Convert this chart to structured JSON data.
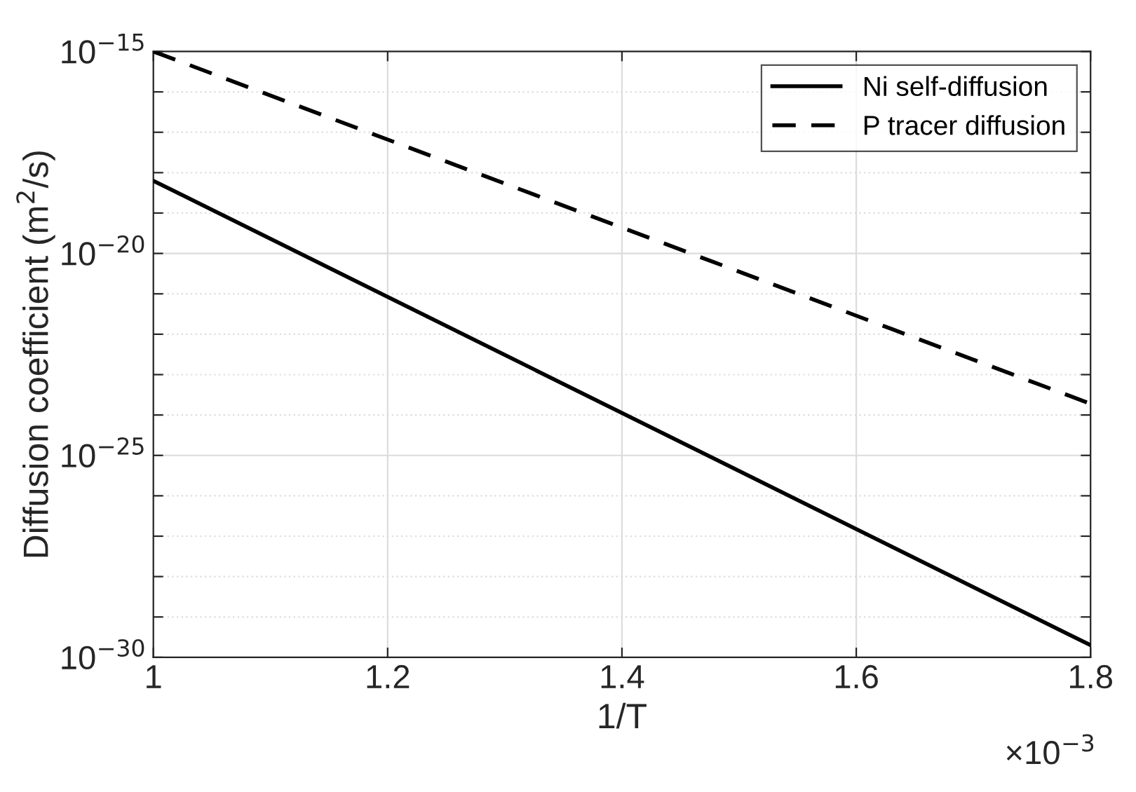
{
  "chart_data": {
    "type": "line",
    "xlabel": "1/T",
    "ylabel": "Diffusion coefficient (m$^{2}$/s)",
    "log": "y",
    "x": [
      1,
      1.8
    ],
    "series": [
      {
        "name": "Ni self-diffusion",
        "color": "#000000",
        "values": [
          6.3e-19,
          2e-30
        ],
        "line_style": "solid"
      },
      {
        "name": "P tracer diffusion",
        "color": "#000000",
        "values": [
          1e-15,
          1.9e-24
        ],
        "line_style": "dashed"
      }
    ],
    "xlim": [
      1,
      1.8
    ],
    "xticks": [
      1,
      1.2,
      1.4,
      1.6,
      1.8
    ],
    "ylim": [
      1e-30,
      1e-15
    ],
    "yticks": [
      {
        "value": 1e-30,
        "label": "10$^{−30}$"
      },
      {
        "value": 1e-29,
        "label": null
      },
      {
        "value": 1e-28,
        "label": null
      },
      {
        "value": 1e-27,
        "label": null
      },
      {
        "value": 1e-26,
        "label": null
      },
      {
        "value": 1e-25,
        "label": "10$^{−25}$"
      },
      {
        "value": 1e-24,
        "label": null
      },
      {
        "value": 1e-23,
        "label": null
      },
      {
        "value": 1e-22,
        "label": null
      },
      {
        "value": 1e-21,
        "label": null
      },
      {
        "value": 1e-20,
        "label": "10$^{−20}$"
      },
      {
        "value": 1e-19,
        "label": null
      },
      {
        "value": 1e-18,
        "label": null
      },
      {
        "value": 1e-17,
        "label": null
      },
      {
        "value": 1e-16,
        "label": null
      },
      {
        "value": 1e-15,
        "label": "10$^{−15}$"
      }
    ],
    "annotations": [
      "×10$^{−3}$"
    ],
    "grid": true,
    "legend": "top right",
    "marker": "none"
  }
}
